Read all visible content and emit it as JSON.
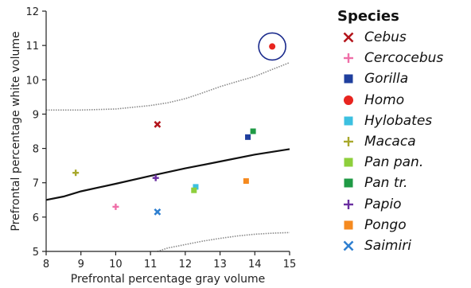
{
  "chart_data": {
    "type": "scatter",
    "xlabel": "Prefrontal percentage gray volume",
    "ylabel": "Prefrontal percentage white volume",
    "xlim": [
      8,
      15
    ],
    "ylim": [
      5,
      12
    ],
    "xticks": [
      "8",
      "9",
      "10",
      "11",
      "12",
      "13",
      "14",
      "15"
    ],
    "yticks": [
      "5",
      "6",
      "7",
      "8",
      "9",
      "10",
      "11",
      "12"
    ],
    "legend_title": "Species",
    "legend_position": "right",
    "series": [
      {
        "name": "Cebus",
        "marker": "x",
        "color": "#b3141b",
        "x": 11.2,
        "y": 8.7
      },
      {
        "name": "Cercocebus",
        "marker": "plus",
        "color": "#ef6fa8",
        "x": 10.0,
        "y": 6.3
      },
      {
        "name": "Gorilla",
        "marker": "square",
        "color": "#1f3f9e",
        "x": 13.8,
        "y": 8.33
      },
      {
        "name": "Homo",
        "marker": "circle",
        "color": "#e8241f",
        "x": 14.5,
        "y": 10.97
      },
      {
        "name": "Hylobates",
        "marker": "square",
        "color": "#3cc0e0",
        "x": 12.3,
        "y": 6.88
      },
      {
        "name": "Macaca",
        "marker": "plus",
        "color": "#a8a82c",
        "x": 8.85,
        "y": 7.29
      },
      {
        "name": "Pan pan.",
        "marker": "square",
        "color": "#8ecf3c",
        "x": 12.25,
        "y": 6.78
      },
      {
        "name": "Pan tr.",
        "marker": "square",
        "color": "#1f9a45",
        "x": 13.95,
        "y": 8.5
      },
      {
        "name": "Papio",
        "marker": "plus",
        "color": "#6a2ea0",
        "x": 11.15,
        "y": 7.14
      },
      {
        "name": "Pongo",
        "marker": "square",
        "color": "#f58a1f",
        "x": 13.75,
        "y": 7.05
      },
      {
        "name": "Saimiri",
        "marker": "x",
        "color": "#2e7fd0",
        "x": 11.2,
        "y": 6.15
      }
    ],
    "regression_line": {
      "x": [
        8,
        8.5,
        9,
        10,
        11,
        12,
        13,
        14,
        15
      ],
      "y": [
        6.5,
        6.6,
        6.75,
        6.97,
        7.2,
        7.42,
        7.62,
        7.82,
        7.98
      ]
    },
    "upper_band": {
      "x": [
        8,
        9,
        10,
        11,
        11.5,
        12,
        12.5,
        13,
        13.5,
        14,
        14.5,
        15
      ],
      "y": [
        9.12,
        9.12,
        9.15,
        9.25,
        9.33,
        9.45,
        9.62,
        9.8,
        9.95,
        10.1,
        10.3,
        10.5
      ]
    },
    "lower_band": {
      "x": [
        11.2,
        11.5,
        12,
        12.5,
        13,
        13.5,
        14,
        14.5,
        15
      ],
      "y": [
        5.0,
        5.1,
        5.2,
        5.3,
        5.38,
        5.45,
        5.5,
        5.53,
        5.55
      ]
    },
    "highlight": {
      "target": "Homo",
      "color": "#1a2a8c"
    }
  }
}
